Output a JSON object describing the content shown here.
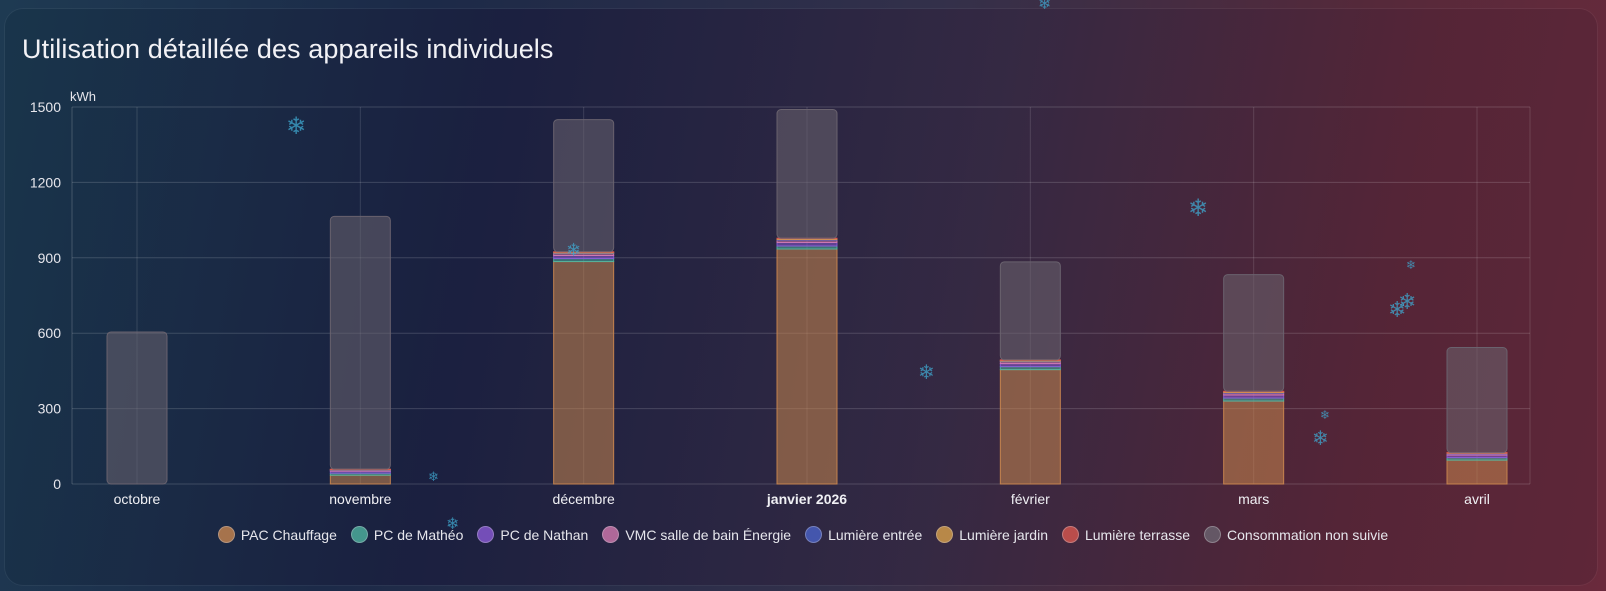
{
  "card": {
    "title": "Utilisation détaillée des appareils individuels"
  },
  "chart_data": {
    "type": "bar",
    "stacked": true,
    "ylabel": "kWh",
    "ylim": [
      0,
      1500
    ],
    "yticks": [
      0,
      300,
      600,
      900,
      1200,
      1500
    ],
    "categories": [
      "octobre",
      "novembre",
      "décembre",
      "janvier 2026",
      "février",
      "mars",
      "avril"
    ],
    "highlighted_category": "janvier 2026",
    "grid": true,
    "legend_position": "bottom",
    "series": [
      {
        "name": "PAC Chauffage",
        "color": "#c9864f",
        "values": [
          0,
          35,
          885,
          935,
          455,
          330,
          95
        ]
      },
      {
        "name": "PC de Mathéo",
        "color": "#4fb3a0",
        "values": [
          0,
          8,
          12,
          12,
          12,
          12,
          10
        ]
      },
      {
        "name": "PC de Nathan",
        "color": "#8a5ad6",
        "values": [
          0,
          8,
          12,
          14,
          12,
          12,
          10
        ]
      },
      {
        "name": "VMC salle de bain Énergie",
        "color": "#d27ab0",
        "values": [
          0,
          4,
          8,
          10,
          8,
          8,
          6
        ]
      },
      {
        "name": "Lumière entrée",
        "color": "#4a62c8",
        "values": [
          0,
          1,
          2,
          2,
          2,
          2,
          1
        ]
      },
      {
        "name": "Lumière jardin",
        "color": "#d9a04a",
        "values": [
          0,
          2,
          3,
          3,
          3,
          3,
          2
        ]
      },
      {
        "name": "Lumière terrasse",
        "color": "#d9574f",
        "values": [
          0,
          1,
          2,
          2,
          2,
          2,
          1
        ]
      },
      {
        "name": "Consommation non suivie",
        "color": "#6b6470",
        "values": [
          605,
          1006,
          526,
          512,
          390,
          464,
          418
        ]
      }
    ]
  }
}
